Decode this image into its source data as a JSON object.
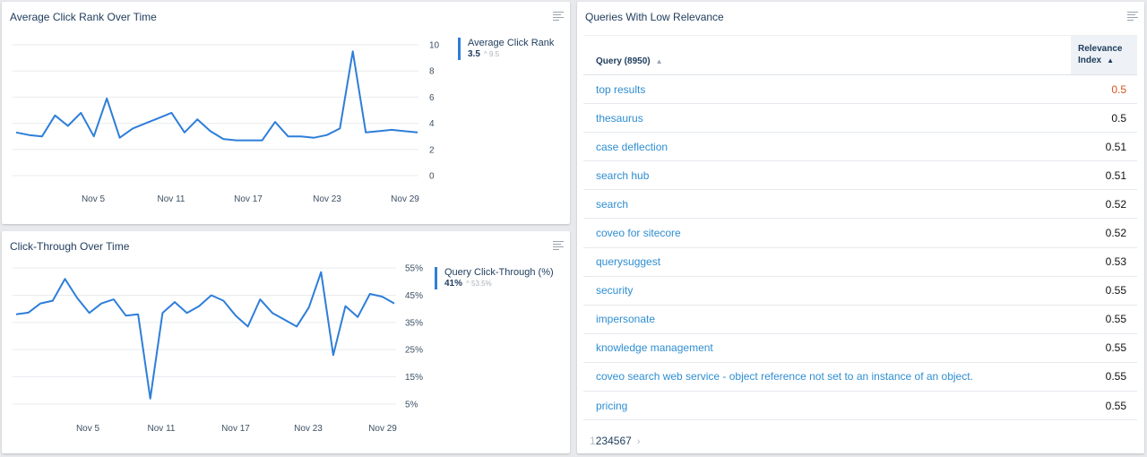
{
  "rank_card": {
    "title": "Average Click Rank Over Time",
    "legend_name": "Average Click Rank",
    "legend_value": "3.5",
    "legend_prev": "9.5"
  },
  "ctr_card": {
    "title": "Click-Through Over Time",
    "legend_name": "Query Click-Through (%)",
    "legend_value": "41%",
    "legend_prev": "53.5%"
  },
  "relevance_card": {
    "title": "Queries With Low Relevance",
    "col_query": "Query (8950)",
    "col_relevance": [
      "Relevance",
      "Index"
    ],
    "rows": [
      {
        "query": "top results",
        "value": "0.5",
        "highlight": true
      },
      {
        "query": "thesaurus",
        "value": "0.5",
        "highlight": false
      },
      {
        "query": "case deflection",
        "value": "0.51",
        "highlight": false
      },
      {
        "query": "search hub",
        "value": "0.51",
        "highlight": false
      },
      {
        "query": "search",
        "value": "0.52",
        "highlight": false
      },
      {
        "query": "coveo for sitecore",
        "value": "0.52",
        "highlight": false
      },
      {
        "query": "querysuggest",
        "value": "0.53",
        "highlight": false
      },
      {
        "query": "security",
        "value": "0.55",
        "highlight": false
      },
      {
        "query": "impersonate",
        "value": "0.55",
        "highlight": false
      },
      {
        "query": "knowledge management",
        "value": "0.55",
        "highlight": false
      },
      {
        "query": "coveo search web service - object reference not set to an instance of an object.",
        "value": "0.55",
        "highlight": false
      },
      {
        "query": "pricing",
        "value": "0.55",
        "highlight": false
      }
    ],
    "pages": [
      "1",
      "2",
      "3",
      "4",
      "5",
      "6",
      "7"
    ],
    "current_page": "1"
  },
  "colors": {
    "line": "#2e7ed9",
    "link": "#2e8ed1",
    "highlight": "#d6541f",
    "title": "#1d3b5c"
  },
  "chart_data": [
    {
      "type": "line",
      "title": "Average Click Rank Over Time",
      "x_tick_labels": [
        "Nov 5",
        "Nov 11",
        "Nov 17",
        "Nov 23",
        "Nov 29"
      ],
      "y_ticks": [
        0,
        2,
        4,
        6,
        8,
        10
      ],
      "ylim": [
        0,
        10
      ],
      "grid": true,
      "legend_position": "right",
      "series": [
        {
          "name": "Average Click Rank",
          "values": [
            3.3,
            3.1,
            3.0,
            4.6,
            3.8,
            4.8,
            3.0,
            5.9,
            2.9,
            3.6,
            4.0,
            4.4,
            4.8,
            3.3,
            4.3,
            3.4,
            2.8,
            2.7,
            2.7,
            2.7,
            4.1,
            3.0,
            3.0,
            2.9,
            3.1,
            3.6,
            9.5,
            3.3,
            3.4,
            3.5,
            3.4,
            3.3
          ]
        }
      ]
    },
    {
      "type": "line",
      "title": "Click-Through Over Time",
      "x_tick_labels": [
        "Nov 5",
        "Nov 11",
        "Nov 17",
        "Nov 23",
        "Nov 29"
      ],
      "y_ticks": [
        "5%",
        "15%",
        "25%",
        "35%",
        "45%",
        "55%"
      ],
      "ylim": [
        0,
        60
      ],
      "grid": true,
      "legend_position": "right",
      "series": [
        {
          "name": "Query Click-Through (%)",
          "values": [
            38,
            38.6,
            42,
            43,
            51,
            44,
            38.5,
            42,
            43.5,
            37.5,
            38,
            7,
            38.5,
            42.5,
            38.5,
            41,
            45,
            43,
            37.5,
            33.5,
            43.5,
            38.5,
            36,
            33.5,
            40.5,
            53.5,
            23,
            41,
            37,
            45.5,
            44.5,
            42
          ]
        }
      ]
    }
  ]
}
